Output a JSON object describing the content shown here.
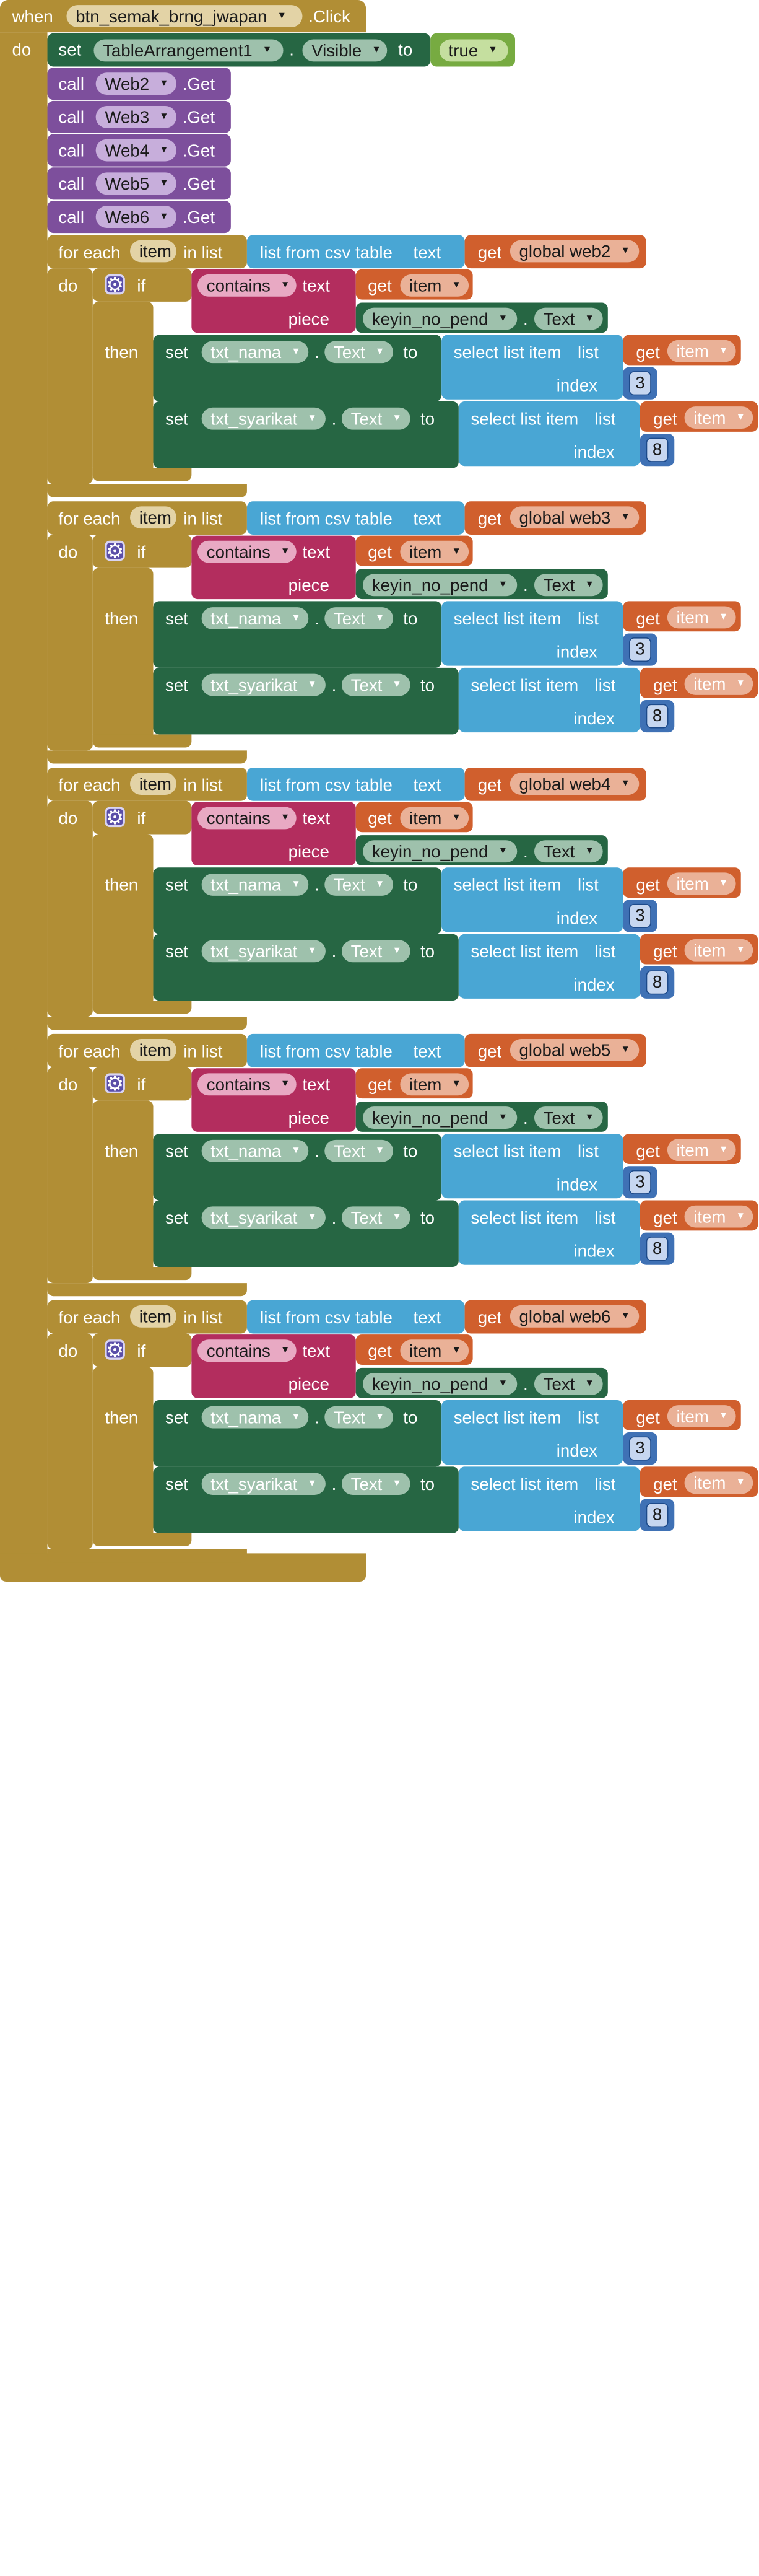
{
  "event": {
    "when": "when",
    "component": "btn_semak_brng_jwapan",
    "event_name": ".Click",
    "do": "do"
  },
  "set_visible": {
    "set": "set",
    "component": "TableArrangement1",
    "dot": ".",
    "property": "Visible",
    "to": "to",
    "value": "true"
  },
  "web_calls": [
    {
      "call": "call",
      "component": "Web2",
      "method": ".Get"
    },
    {
      "call": "call",
      "component": "Web3",
      "method": ".Get"
    },
    {
      "call": "call",
      "component": "Web4",
      "method": ".Get"
    },
    {
      "call": "call",
      "component": "Web5",
      "method": ".Get"
    },
    {
      "call": "call",
      "component": "Web6",
      "method": ".Get"
    }
  ],
  "loops": [
    {
      "global_var": "global web2"
    },
    {
      "global_var": "global web3"
    },
    {
      "global_var": "global web4"
    },
    {
      "global_var": "global web5"
    },
    {
      "global_var": "global web6"
    }
  ],
  "loop_labels": {
    "for_each": "for each",
    "item_var": "item",
    "in_list": "in list",
    "do": "do",
    "csv": "list from csv table",
    "text": "text",
    "get": "get",
    "if": "if",
    "then": "then",
    "contains": "contains",
    "piece": "piece",
    "piece_component": "keyin_no_pend",
    "dot": ".",
    "piece_property": "Text",
    "set": "set",
    "to": "to",
    "select_list_item": "select list item",
    "list": "list",
    "index": "index"
  },
  "set_statements": [
    {
      "component": "txt_nama",
      "property": "Text",
      "index": "3"
    },
    {
      "component": "txt_syarikat",
      "property": "Text",
      "index": "8"
    }
  ],
  "colors": {
    "control": "#b18e35",
    "component_set": "#266643",
    "logic": "#77ab41",
    "procedure_call": "#7d4f9c",
    "list": "#49a6d4",
    "variable": "#d05f2d",
    "text": "#b32d5e",
    "math": "#3f71b5"
  }
}
